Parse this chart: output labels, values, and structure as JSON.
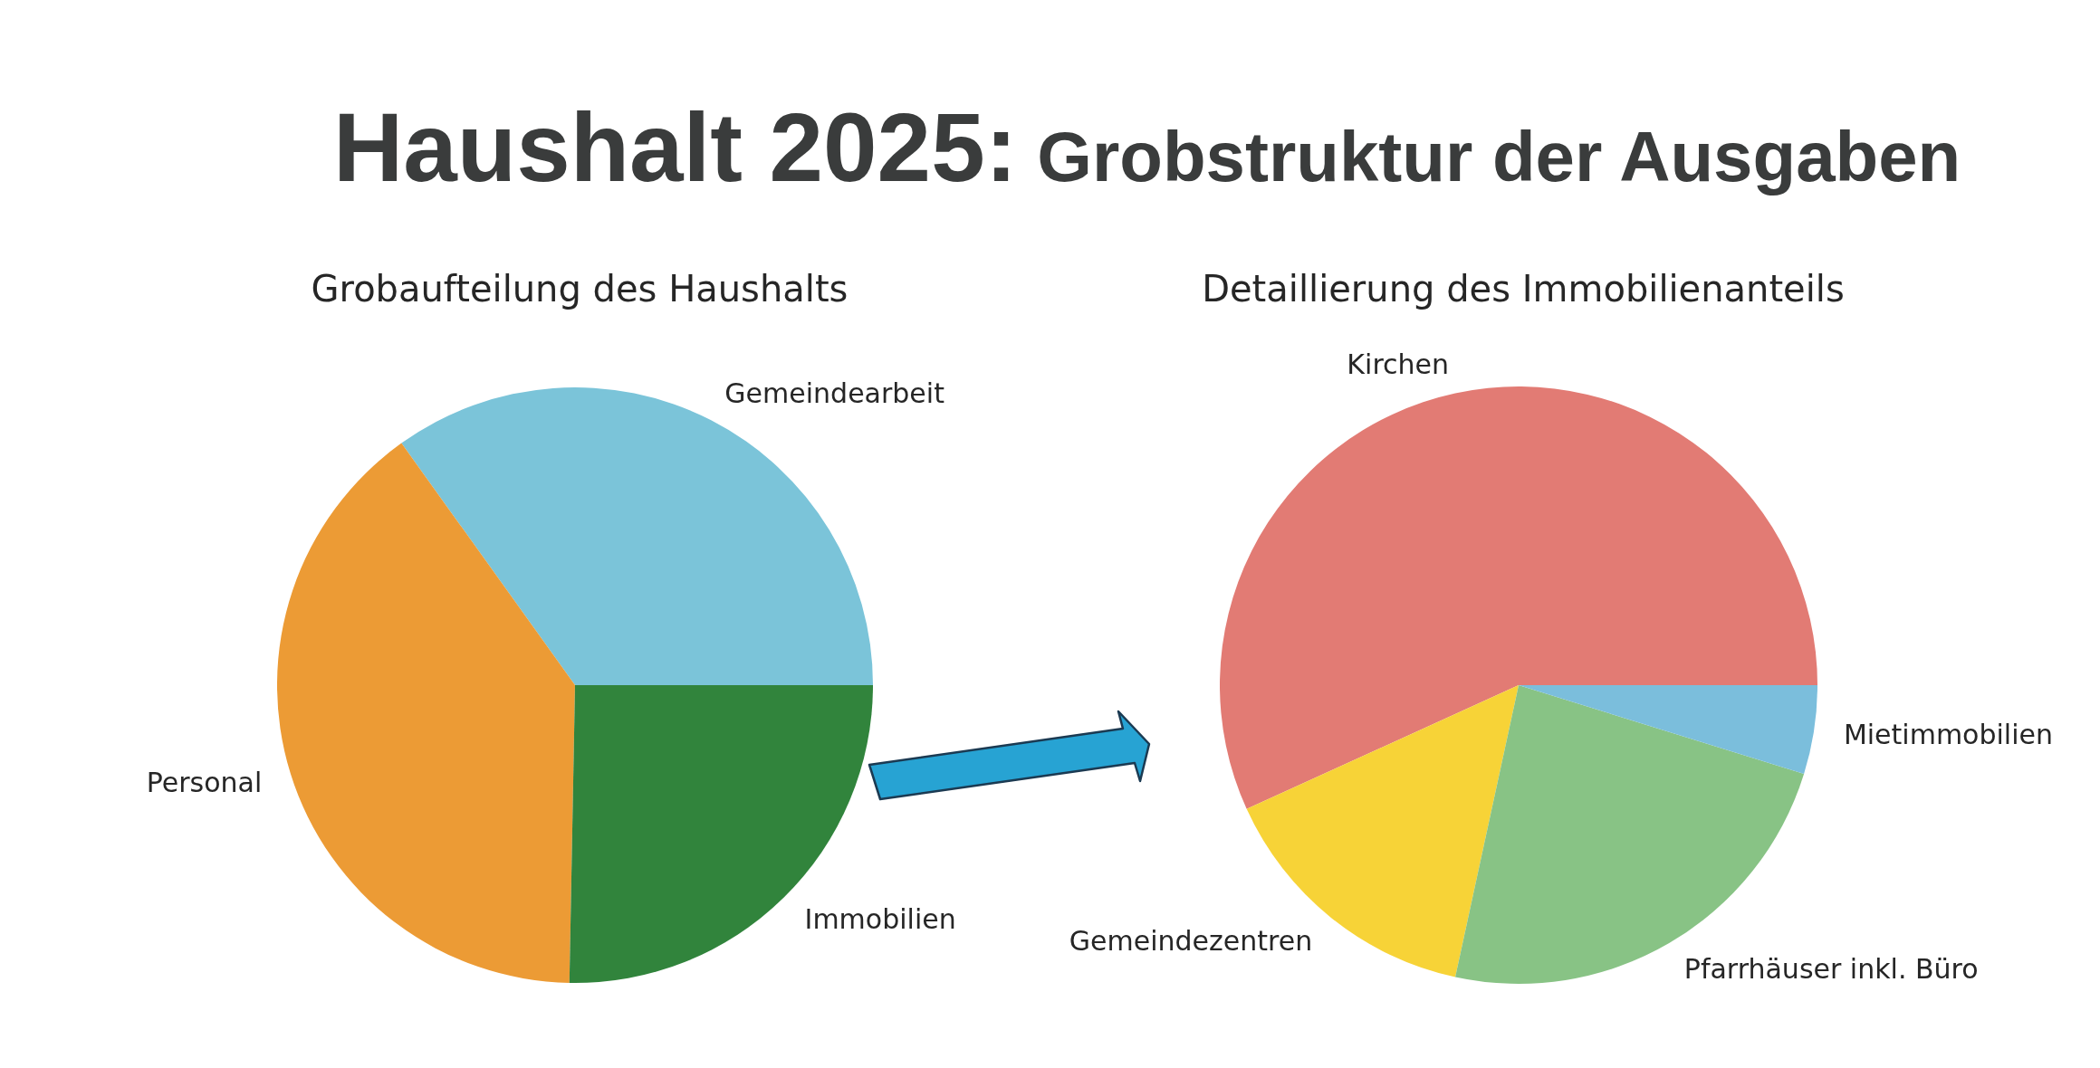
{
  "chart_data": [
    {
      "type": "other",
      "title": "Haushalt 2025:",
      "subtitle": "Grobstruktur der Ausgaben"
    },
    {
      "type": "pie",
      "title": "Grobaufteilung des Haushalts",
      "categories": [
        "Gemeindearbeit",
        "Personal",
        "Immobilien"
      ],
      "values": [
        34.9,
        39.8,
        25.3
      ],
      "colors": [
        "#7bc4d9",
        "#ec9b35",
        "#31843c"
      ]
    },
    {
      "type": "pie",
      "title": "Detaillierung des Immobilienanteils",
      "categories": [
        "Kirchen",
        "Gemeindezentren",
        "Pfarrhäuser inkl. Büro",
        "Mietimmobilien"
      ],
      "values": [
        56.8,
        14.8,
        23.6,
        4.8
      ],
      "colors": [
        "#e27b74",
        "#f7d337",
        "#88c385",
        "#7bbedc"
      ]
    }
  ]
}
